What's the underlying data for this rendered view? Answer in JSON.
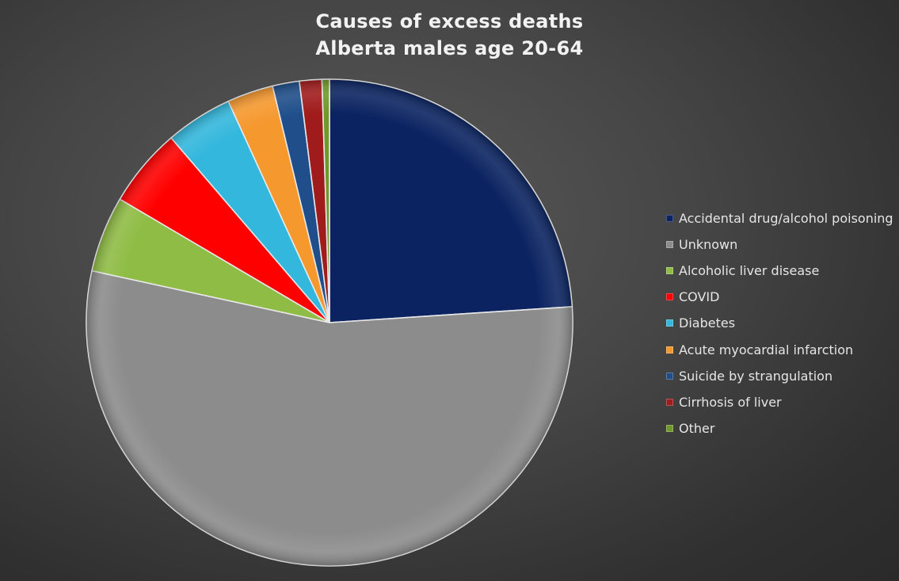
{
  "chart_data": {
    "type": "pie",
    "title": [
      "Causes of excess deaths",
      "Alberta males age 20-64"
    ],
    "legend_position": "right",
    "slices": [
      {
        "label": "Accidental drug/alcohol poisoning",
        "value": 24.2,
        "color": "#0b2461"
      },
      {
        "label": "Unknown",
        "value": 55.0,
        "color": "#8c8c8c"
      },
      {
        "label": "Alcoholic liver disease",
        "value": 5.1,
        "color": "#8fbc45"
      },
      {
        "label": "COVID",
        "value": 5.3,
        "color": "#ff0000"
      },
      {
        "label": "Diabetes",
        "value": 4.5,
        "color": "#33b7dc"
      },
      {
        "label": "Acute myocardial infarction",
        "value": 3.1,
        "color": "#f5982e"
      },
      {
        "label": "Suicide by strangulation",
        "value": 1.8,
        "color": "#1f4e8a"
      },
      {
        "label": "Cirrhosis of liver",
        "value": 1.5,
        "color": "#a01c1c"
      },
      {
        "label": "Other",
        "value": 0.5,
        "color": "#6f9a2a"
      }
    ]
  }
}
